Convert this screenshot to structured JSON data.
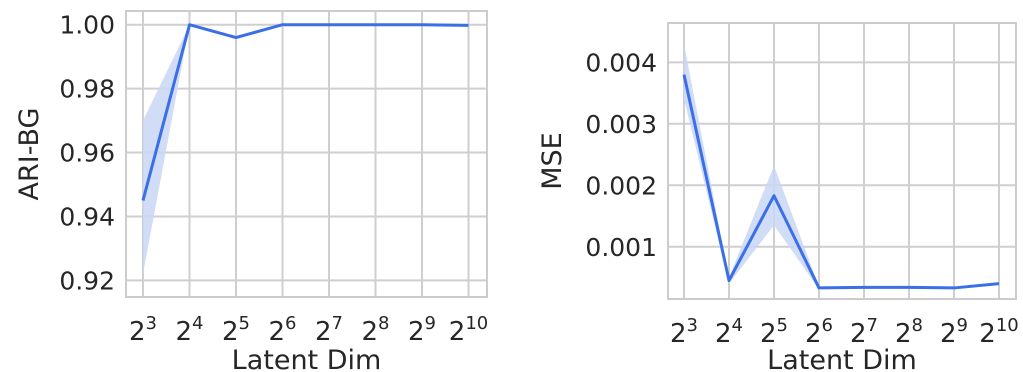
{
  "colors": {
    "line": "#3b6fe8",
    "band": "#c9d6f5",
    "grid": "#cfcfcf",
    "frame": "#cccccc",
    "text": "#262626"
  },
  "chart_data": [
    {
      "type": "line",
      "xlabel": "Latent Dim",
      "ylabel": "ARI-BG",
      "x_ticks": [
        {
          "base": "2",
          "exp": "3"
        },
        {
          "base": "2",
          "exp": "4"
        },
        {
          "base": "2",
          "exp": "5"
        },
        {
          "base": "2",
          "exp": "6"
        },
        {
          "base": "2",
          "exp": "7"
        },
        {
          "base": "2",
          "exp": "8"
        },
        {
          "base": "2",
          "exp": "9"
        },
        {
          "base": "2",
          "exp": "10"
        }
      ],
      "x": [
        8,
        16,
        32,
        64,
        128,
        256,
        512,
        1024
      ],
      "y": [
        0.945,
        1.0,
        0.996,
        1.0,
        1.0,
        1.0,
        1.0,
        0.9998
      ],
      "y_lower": [
        0.922,
        1.0,
        0.9955,
        1.0,
        1.0,
        1.0,
        1.0,
        0.9997
      ],
      "y_upper": [
        0.97,
        1.0,
        0.9965,
        1.0,
        1.0,
        1.0,
        1.0,
        0.9999
      ],
      "y_ticks": [
        "0.92",
        "0.94",
        "0.96",
        "0.98",
        "1.00"
      ],
      "y_tick_values": [
        0.92,
        0.94,
        0.96,
        0.98,
        1.0
      ],
      "ylim": [
        0.9148,
        1.0043
      ],
      "grid": true
    },
    {
      "type": "line",
      "xlabel": "Latent Dim",
      "ylabel": "MSE",
      "x_ticks": [
        {
          "base": "2",
          "exp": "3"
        },
        {
          "base": "2",
          "exp": "4"
        },
        {
          "base": "2",
          "exp": "5"
        },
        {
          "base": "2",
          "exp": "6"
        },
        {
          "base": "2",
          "exp": "7"
        },
        {
          "base": "2",
          "exp": "8"
        },
        {
          "base": "2",
          "exp": "9"
        },
        {
          "base": "2",
          "exp": "10"
        }
      ],
      "x": [
        8,
        16,
        32,
        64,
        128,
        256,
        512,
        1024
      ],
      "y": [
        0.0038,
        0.00045,
        0.00183,
        0.00033,
        0.00034,
        0.00034,
        0.00033,
        0.0004
      ],
      "y_lower": [
        0.0034,
        0.0004,
        0.00135,
        0.00031,
        0.00032,
        0.00032,
        0.00031,
        0.00038
      ],
      "y_upper": [
        0.0043,
        0.0005,
        0.00232,
        0.00035,
        0.00036,
        0.00036,
        0.00035,
        0.00042
      ],
      "y_ticks": [
        "0.001",
        "0.002",
        "0.003",
        "0.004"
      ],
      "y_tick_values": [
        0.001,
        0.002,
        0.003,
        0.004
      ],
      "ylim": [
        0.00015,
        0.00464
      ],
      "grid": true
    }
  ]
}
